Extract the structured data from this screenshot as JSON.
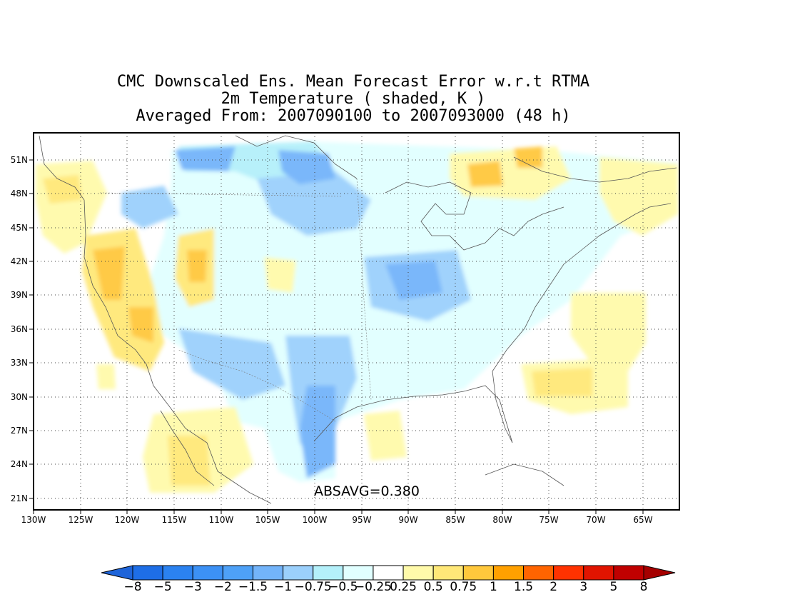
{
  "title_lines": [
    "CMC Downscaled Ens. Mean Forecast Error w.r.t RTMA",
    "2m Temperature ( shaded, K )",
    "Averaged From: 2007090100 to 2007093000 (48 h)"
  ],
  "lat_labels": [
    "51N",
    "48N",
    "45N",
    "42N",
    "39N",
    "36N",
    "33N",
    "30N",
    "27N",
    "24N",
    "21N"
  ],
  "lon_labels": [
    "130W",
    "125W",
    "120W",
    "115W",
    "110W",
    "105W",
    "100W",
    "95W",
    "90W",
    "85W",
    "80W",
    "75W",
    "70W",
    "65W"
  ],
  "absavg": "ABSAVG=0.380",
  "colorbar": {
    "labels": [
      "−8",
      "−5",
      "−3",
      "−2",
      "−1.5",
      "−1",
      "−0.75",
      "−0.5",
      "−0.25",
      "0.25",
      "0.5",
      "0.75",
      "1",
      "1.5",
      "2",
      "3",
      "5",
      "8"
    ],
    "colors": [
      "#1e64d9",
      "#1e6ee6",
      "#2b82f0",
      "#3c91f5",
      "#4ea1f7",
      "#73b4fa",
      "#9bd0fc",
      "#b4f0fa",
      "#e1ffff",
      "#ffffff",
      "#fffaaa",
      "#ffe878",
      "#ffc83c",
      "#ffa000",
      "#ff6400",
      "#ff3200",
      "#e11400",
      "#c00000",
      "#a50000"
    ]
  }
}
